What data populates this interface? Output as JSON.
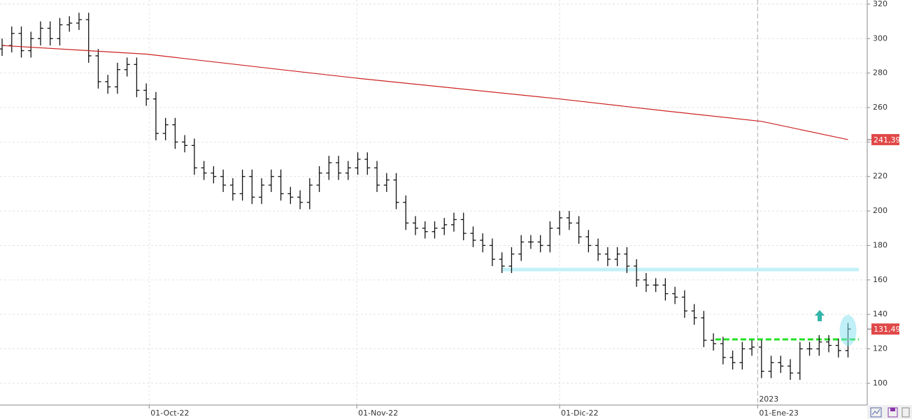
{
  "chart_data": {
    "type": "ohlc",
    "open": [
      294,
      296,
      303,
      293,
      300,
      306,
      300,
      308,
      309,
      311,
      290,
      275,
      272,
      282,
      285,
      270,
      265,
      245,
      250,
      240,
      238,
      225,
      222,
      220,
      215,
      210,
      220,
      208,
      215,
      220,
      210,
      208,
      205,
      215,
      222,
      228,
      222,
      225,
      230,
      225,
      215,
      218,
      205,
      193,
      190,
      188,
      190,
      192,
      195,
      187,
      183,
      180,
      172,
      168,
      175,
      182,
      182,
      180,
      190,
      196,
      193,
      185,
      180,
      175,
      172,
      175,
      168,
      160,
      157,
      157,
      152,
      150,
      142,
      138,
      125,
      123,
      115,
      112,
      120,
      121,
      107,
      112,
      110,
      106,
      120,
      120,
      124,
      122,
      119
    ],
    "high": [
      300,
      307,
      307,
      304,
      310,
      310,
      312,
      313,
      315,
      315,
      294,
      279,
      286,
      289,
      289,
      274,
      269,
      254,
      254,
      244,
      242,
      229,
      226,
      224,
      219,
      224,
      224,
      219,
      224,
      224,
      214,
      212,
      219,
      226,
      232,
      232,
      229,
      234,
      234,
      229,
      222,
      222,
      209,
      197,
      194,
      194,
      196,
      199,
      199,
      191,
      187,
      184,
      176,
      179,
      186,
      186,
      186,
      194,
      200,
      200,
      197,
      189,
      184,
      179,
      179,
      179,
      172,
      164,
      161,
      161,
      156,
      154,
      146,
      142,
      129,
      127,
      119,
      124,
      125,
      125,
      116,
      116,
      114,
      124,
      124,
      128,
      128,
      126,
      135
    ],
    "low": [
      290,
      292,
      289,
      289,
      296,
      296,
      296,
      304,
      305,
      286,
      271,
      268,
      268,
      278,
      266,
      261,
      241,
      241,
      236,
      234,
      221,
      218,
      216,
      211,
      206,
      206,
      204,
      204,
      211,
      206,
      204,
      201,
      201,
      211,
      218,
      218,
      218,
      221,
      221,
      211,
      211,
      201,
      189,
      186,
      184,
      184,
      186,
      188,
      183,
      179,
      176,
      168,
      164,
      164,
      171,
      178,
      176,
      176,
      186,
      189,
      181,
      176,
      171,
      168,
      168,
      164,
      156,
      153,
      153,
      148,
      146,
      138,
      134,
      121,
      119,
      111,
      108,
      108,
      116,
      103,
      103,
      106,
      102,
      102,
      116,
      116,
      118,
      115,
      115
    ],
    "close": [
      296,
      303,
      293,
      300,
      306,
      300,
      308,
      309,
      311,
      290,
      275,
      272,
      282,
      285,
      270,
      265,
      245,
      250,
      240,
      238,
      225,
      222,
      220,
      215,
      210,
      220,
      208,
      215,
      220,
      210,
      208,
      205,
      215,
      222,
      228,
      222,
      225,
      230,
      225,
      215,
      218,
      205,
      193,
      190,
      188,
      190,
      192,
      195,
      187,
      183,
      180,
      172,
      168,
      175,
      182,
      182,
      180,
      190,
      196,
      193,
      185,
      180,
      175,
      172,
      175,
      168,
      160,
      157,
      157,
      152,
      150,
      142,
      138,
      125,
      123,
      115,
      112,
      120,
      121,
      107,
      112,
      110,
      106,
      120,
      120,
      124,
      122,
      119,
      131.49
    ],
    "color": "#111111",
    "ma": {
      "x": [
        0,
        15,
        29,
        37,
        58,
        69,
        79,
        88
      ],
      "values": [
        296,
        291,
        282,
        277,
        265,
        258,
        252,
        241.39
      ],
      "color": "#cc2222"
    },
    "lines": [
      {
        "value": 166,
        "from": 52,
        "color": "#c2f1f8",
        "dashed": false
      },
      {
        "value": 125.5,
        "from": 74.2,
        "color": "#22e022",
        "dashed": true
      }
    ],
    "price_labels": [
      {
        "value": 241.39,
        "label": "241,39"
      },
      {
        "value": 131.49,
        "label": "131,49"
      }
    ],
    "xlim": [
      -0.22,
      90
    ],
    "ylim": [
      87.4,
      322.4
    ],
    "yticks": [
      100,
      120,
      140,
      160,
      180,
      200,
      220,
      240,
      260,
      280,
      300,
      320
    ],
    "xticks": [
      {
        "value": 15.3,
        "label": "01-Oct-22"
      },
      {
        "value": 36.9,
        "label": "01-Nov-22"
      },
      {
        "value": 58,
        "label": "01-Dic-22"
      },
      {
        "value": 78.6,
        "label": "01-Ene-23"
      }
    ],
    "year_marker": {
      "value": 78.6,
      "label": "2023"
    },
    "grid": true
  }
}
